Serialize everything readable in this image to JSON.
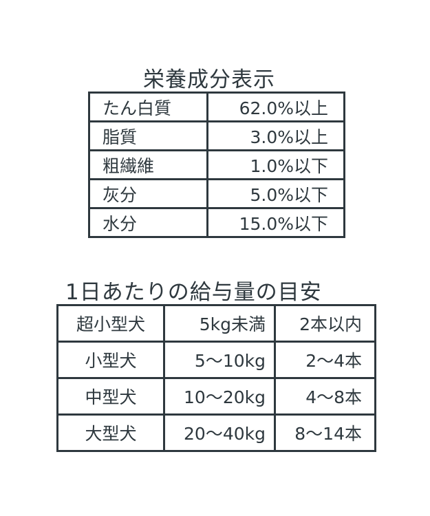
{
  "nutrition": {
    "title": "栄養成分表示",
    "rows": [
      {
        "name": "たん白質",
        "value": "62.0%以上"
      },
      {
        "name": "脂質",
        "value": "3.0%以上"
      },
      {
        "name": "粗繊維",
        "value": "1.0%以下"
      },
      {
        "name": "灰分",
        "value": "5.0%以下"
      },
      {
        "name": "水分",
        "value": "15.0%以下"
      }
    ]
  },
  "feeding": {
    "title": "1日あたりの給与量の目安",
    "rows": [
      {
        "size": "超小型犬",
        "weight": "5kg未満",
        "amount": "2本以内"
      },
      {
        "size": "小型犬",
        "weight": "5〜10kg",
        "amount": "2〜4本"
      },
      {
        "size": "中型犬",
        "weight": "10〜20kg",
        "amount": "4〜8本"
      },
      {
        "size": "大型犬",
        "weight": "20〜40kg",
        "amount": "8〜14本"
      }
    ]
  }
}
